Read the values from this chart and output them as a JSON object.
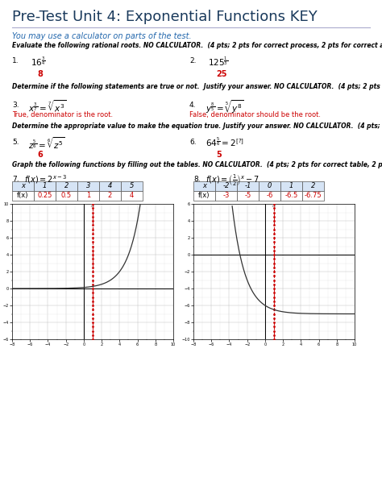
{
  "title": "Pre-Test Unit 4: Exponential Functions KEY",
  "subtitle": "You may use a calculator on parts of the test.",
  "s1_header": "Evaluate the following rational roots. NO CALCULATOR.  (4 pts; 2 pts for correct process, 2 pts for correct answer)",
  "q1_ans": "8",
  "q2_ans": "25",
  "s2_header": "Determine if the following statements are true or not.  Justify your answer. NO CALCULATOR.  (4 pts; 2 pts for correct answer, 2 pts for justification)",
  "q3_ans": "True, denominator is the root.",
  "q4_ans": "False, denominator should be the root.",
  "s3_header": "Determine the appropriate value to make the equation true. Justify your answer. NO CALCULATOR.  (4 pts; no partial credit)",
  "q5_ans": "6",
  "q6_ans": "5",
  "s4_header": "Graph the following functions by filling out the tables. NO CALCULATOR.  (4 pts; 2 pts for correct table, 2 pts for graph correctly based on table)",
  "q7_x": [
    1,
    2,
    3,
    4,
    5
  ],
  "q7_fx": [
    "0.25",
    "0.5",
    "1",
    "2",
    "4"
  ],
  "q8_x": [
    -2,
    -1,
    0,
    1,
    2
  ],
  "q8_fx": [
    "-3",
    "-5",
    "-6",
    "-6.5",
    "-6.75"
  ],
  "title_color": "#1a3a5c",
  "subtitle_color": "#2166ac",
  "ans_color": "#cc0000",
  "g7_xlim": [
    -8,
    10
  ],
  "g7_ylim": [
    -6,
    10
  ],
  "g8_xlim": [
    -8,
    10
  ],
  "g8_ylim": [
    -10,
    6
  ]
}
